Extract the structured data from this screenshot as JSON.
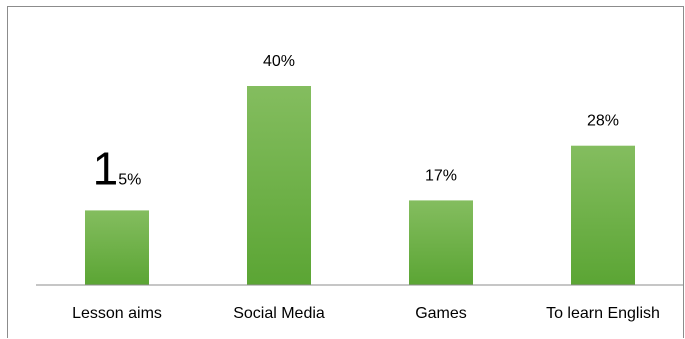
{
  "colors": {
    "bar_top": "#84bd5f",
    "bar_bottom": "#5ba534",
    "axis": "#8c8c8c"
  },
  "chart_data": {
    "type": "bar",
    "categories": [
      "Lesson aims",
      "Social Media",
      "Games",
      "To learn English"
    ],
    "values": [
      15,
      40,
      17,
      28
    ],
    "data_labels": [
      {
        "lead": "1",
        "rest": "5%"
      },
      {
        "lead": "",
        "rest": "40%"
      },
      {
        "lead": "",
        "rest": "17%"
      },
      {
        "lead": "",
        "rest": "28%"
      }
    ],
    "title": "",
    "xlabel": "",
    "ylabel": "",
    "ylim": [
      0,
      45
    ],
    "grid": false,
    "legend": "none"
  }
}
